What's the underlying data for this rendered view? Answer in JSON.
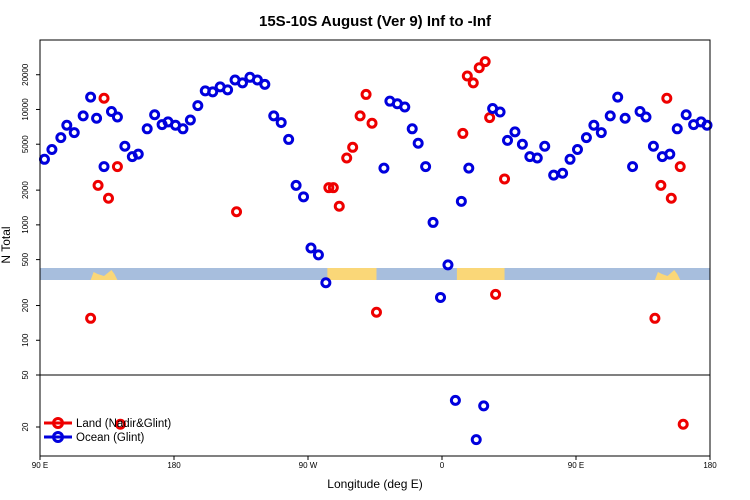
{
  "chart_data": {
    "type": "scatter",
    "title": "15S-10S August (Ver 9)   Inf to -Inf",
    "xlabel": "Longitude (deg E)",
    "ylabel": "N Total",
    "x_ticks": [
      {
        "value": 90,
        "label": "90 E"
      },
      {
        "value": 180,
        "label": "180"
      },
      {
        "value": 270,
        "label": "90 W"
      },
      {
        "value": 360,
        "label": "0"
      },
      {
        "value": 450,
        "label": "90 E"
      },
      {
        "value": 540,
        "label": "180"
      }
    ],
    "xlim": [
      90,
      540
    ],
    "y_scale": "log",
    "y_upper_ticks": [
      {
        "value": 100,
        "label": "100"
      },
      {
        "value": 200,
        "label": "200"
      },
      {
        "value": 500,
        "label": "500"
      },
      {
        "value": 1000,
        "label": "1000"
      },
      {
        "value": 2000,
        "label": "2000"
      },
      {
        "value": 5000,
        "label": "5000"
      },
      {
        "value": 10000,
        "label": "10000"
      },
      {
        "value": 20000,
        "label": "20000"
      }
    ],
    "y_lower_ticks": [
      {
        "value": 20,
        "label": "20"
      },
      {
        "value": 50,
        "label": "50"
      }
    ],
    "ylim_upper": [
      50,
      40000
    ],
    "ylim_lower": [
      12,
      50
    ],
    "legend": {
      "position": "bottom-left"
    },
    "colors": {
      "land": "#ee0000",
      "ocean": "#0000dd",
      "map_ocean": "#a7bedd",
      "map_land": "#fad778",
      "frame": "#000000"
    },
    "series": [
      {
        "name": "Land (Nadir&Glint)",
        "color": "#ee0000",
        "points": [
          [
            124,
            155
          ],
          [
            129,
            2200
          ],
          [
            133,
            12500
          ],
          [
            136,
            1700
          ],
          [
            142,
            3200
          ],
          [
            144,
            21
          ],
          [
            222,
            1300
          ],
          [
            284,
            2100
          ],
          [
            287,
            2100
          ],
          [
            291,
            1450
          ],
          [
            296,
            3800
          ],
          [
            300,
            4700
          ],
          [
            305,
            8800
          ],
          [
            309,
            13500
          ],
          [
            313,
            7600
          ],
          [
            316,
            175
          ],
          [
            374,
            6200
          ],
          [
            377,
            19500
          ],
          [
            381,
            17000
          ],
          [
            385,
            23000
          ],
          [
            389,
            26000
          ],
          [
            392,
            8500
          ],
          [
            396,
            250
          ],
          [
            402,
            2500
          ],
          [
            503,
            155
          ],
          [
            507,
            2200
          ],
          [
            511,
            12500
          ],
          [
            514,
            1700
          ],
          [
            520,
            3200
          ],
          [
            522,
            21
          ]
        ]
      },
      {
        "name": "Ocean (Glint)",
        "color": "#0000dd",
        "points": [
          [
            93,
            3700
          ],
          [
            98,
            4500
          ],
          [
            104,
            5700
          ],
          [
            108,
            7300
          ],
          [
            113,
            6300
          ],
          [
            119,
            8800
          ],
          [
            124,
            12800
          ],
          [
            128,
            8400
          ],
          [
            133,
            3200
          ],
          [
            138,
            9600
          ],
          [
            142,
            8600
          ],
          [
            147,
            4800
          ],
          [
            152,
            3900
          ],
          [
            156,
            4100
          ],
          [
            162,
            6800
          ],
          [
            167,
            9000
          ],
          [
            172,
            7400
          ],
          [
            176,
            7800
          ],
          [
            181,
            7300
          ],
          [
            186,
            6800
          ],
          [
            191,
            8100
          ],
          [
            196,
            10800
          ],
          [
            201,
            14500
          ],
          [
            206,
            14200
          ],
          [
            211,
            15700
          ],
          [
            216,
            14800
          ],
          [
            221,
            18000
          ],
          [
            226,
            17000
          ],
          [
            231,
            19000
          ],
          [
            236,
            18000
          ],
          [
            241,
            16500
          ],
          [
            247,
            8800
          ],
          [
            252,
            7700
          ],
          [
            257,
            5500
          ],
          [
            262,
            2200
          ],
          [
            267,
            1750
          ],
          [
            272,
            630
          ],
          [
            277,
            550
          ],
          [
            282,
            315
          ],
          [
            321,
            3100
          ],
          [
            325,
            11800
          ],
          [
            330,
            11200
          ],
          [
            335,
            10500
          ],
          [
            340,
            6800
          ],
          [
            344,
            5100
          ],
          [
            349,
            3200
          ],
          [
            354,
            1050
          ],
          [
            359,
            235
          ],
          [
            364,
            450
          ],
          [
            369,
            32
          ],
          [
            373,
            1600
          ],
          [
            378,
            3100
          ],
          [
            383,
            16
          ],
          [
            388,
            29
          ],
          [
            394,
            10200
          ],
          [
            399,
            9500
          ],
          [
            404,
            5400
          ],
          [
            409,
            6400
          ],
          [
            414,
            5000
          ],
          [
            419,
            3900
          ],
          [
            424,
            3800
          ],
          [
            429,
            4800
          ],
          [
            435,
            2700
          ],
          [
            441,
            2800
          ],
          [
            446,
            3700
          ],
          [
            451,
            4500
          ],
          [
            457,
            5700
          ],
          [
            462,
            7300
          ],
          [
            467,
            6300
          ],
          [
            473,
            8800
          ],
          [
            478,
            12800
          ],
          [
            483,
            8400
          ],
          [
            488,
            3200
          ],
          [
            493,
            9600
          ],
          [
            497,
            8600
          ],
          [
            502,
            4800
          ],
          [
            508,
            3900
          ],
          [
            513,
            4100
          ],
          [
            518,
            6800
          ],
          [
            524,
            9000
          ],
          [
            529,
            7400
          ],
          [
            534,
            7800
          ],
          [
            538,
            7300
          ]
        ]
      }
    ]
  }
}
